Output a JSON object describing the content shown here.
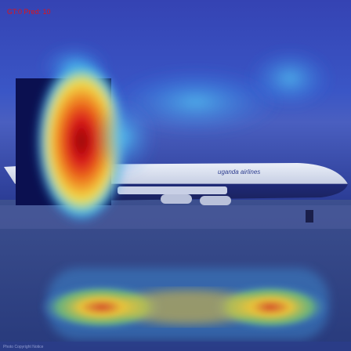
{
  "overlay": {
    "label": "GT:0 Pred: 10",
    "label_color": "#e0121a"
  },
  "photo": {
    "subject": "airliner on runway",
    "livery_text": "uganda airlines",
    "credit": "Photo Copyright Notice"
  },
  "heatmap": {
    "colormap": "jet",
    "palette": {
      "low": "#1f2fa6",
      "mid_low": "#2f8df0",
      "mid": "#f0e34a",
      "high": "#e23a1a",
      "peak": "#9b0000"
    }
  }
}
